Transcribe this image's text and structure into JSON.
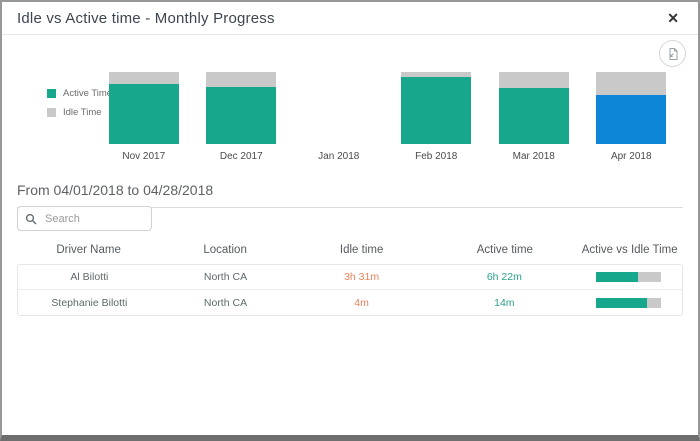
{
  "modal": {
    "title": "Idle vs Active time - Monthly Progress",
    "close_glyph": "✕"
  },
  "chart_data": {
    "type": "bar",
    "variant": "stacked-percent",
    "title": "Idle vs Active time - Monthly Progress",
    "categories": [
      "Nov 2017",
      "Dec 2017",
      "Jan 2018",
      "Feb 2018",
      "Mar 2018",
      "Apr 2018"
    ],
    "series": [
      {
        "name": "Active Time",
        "color": "#17a78c",
        "values": [
          84,
          79,
          null,
          93,
          78,
          68
        ]
      },
      {
        "name": "Idle Time",
        "color": "#c9c9c9",
        "values": [
          16,
          21,
          null,
          7,
          22,
          32
        ]
      }
    ],
    "highlight": {
      "category": "Apr 2018",
      "series": "Active Time",
      "color": "#0d86d8"
    },
    "legend_position": "left",
    "ylim": [
      0,
      100
    ],
    "grid": false
  },
  "period": {
    "label": "From 04/01/2018 to 04/28/2018"
  },
  "search": {
    "placeholder": "Search",
    "value": ""
  },
  "table": {
    "columns": [
      "Driver Name",
      "Location",
      "Idle time",
      "Active time",
      "Active vs Idle Time"
    ],
    "rows": [
      {
        "driver": "Al Bilotti",
        "location": "North CA",
        "idle_time": "3h 31m",
        "active_time": "6h 22m",
        "active_pct": 64
      },
      {
        "driver": "Stephanie Bilotti",
        "location": "North CA",
        "idle_time": "4m",
        "active_time": "14m",
        "active_pct": 78
      }
    ]
  },
  "colors": {
    "active_bar": "#17a78c",
    "idle_bar": "#c9c9c9",
    "selected_month_bar": "#0d86d8",
    "idle_text": "#e8835c",
    "active_text": "#2aa189"
  }
}
